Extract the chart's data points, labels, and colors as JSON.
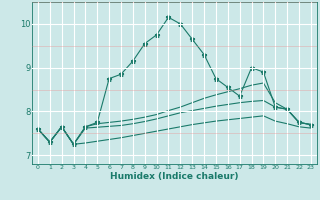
{
  "xlabel": "Humidex (Indice chaleur)",
  "bg_color": "#cce8e8",
  "grid_color": "#ffffff",
  "line_color": "#1a7a6a",
  "xlim": [
    -0.5,
    23.5
  ],
  "ylim": [
    6.8,
    10.5
  ],
  "xticks": [
    0,
    1,
    2,
    3,
    4,
    5,
    6,
    7,
    8,
    9,
    10,
    11,
    12,
    13,
    14,
    15,
    16,
    17,
    18,
    19,
    20,
    21,
    22,
    23
  ],
  "yticks": [
    7,
    8,
    9,
    10
  ],
  "line1_x": [
    0,
    1,
    2,
    3,
    4,
    5,
    6,
    7,
    8,
    9,
    10,
    11,
    12,
    13,
    14,
    15,
    16,
    17,
    18,
    19,
    20,
    21,
    22,
    23
  ],
  "line1_y": [
    7.6,
    7.3,
    7.65,
    7.25,
    7.65,
    7.75,
    8.75,
    8.85,
    9.15,
    9.55,
    9.75,
    10.15,
    10.0,
    9.65,
    9.3,
    8.75,
    8.55,
    8.35,
    9.0,
    8.9,
    8.1,
    8.05,
    7.75,
    7.7
  ],
  "line2_x": [
    0,
    1,
    2,
    3,
    4,
    5,
    6,
    7,
    8,
    9,
    10,
    11,
    12,
    13,
    14,
    15,
    16,
    17,
    18,
    19,
    20,
    21,
    22,
    23
  ],
  "line2_y": [
    7.6,
    7.3,
    7.65,
    7.25,
    7.65,
    7.72,
    7.75,
    7.78,
    7.82,
    7.87,
    7.93,
    8.02,
    8.1,
    8.2,
    8.3,
    8.38,
    8.45,
    8.52,
    8.6,
    8.65,
    8.2,
    8.05,
    7.75,
    7.7
  ],
  "line3_x": [
    0,
    1,
    2,
    3,
    4,
    5,
    6,
    7,
    8,
    9,
    10,
    11,
    12,
    13,
    14,
    15,
    16,
    17,
    18,
    19,
    20,
    21,
    22,
    23
  ],
  "line3_y": [
    7.6,
    7.3,
    7.65,
    7.25,
    7.62,
    7.64,
    7.66,
    7.68,
    7.72,
    7.77,
    7.83,
    7.9,
    7.97,
    8.02,
    8.07,
    8.12,
    8.16,
    8.2,
    8.23,
    8.25,
    8.1,
    8.05,
    7.75,
    7.7
  ],
  "line4_x": [
    0,
    1,
    2,
    3,
    4,
    5,
    6,
    7,
    8,
    9,
    10,
    11,
    12,
    13,
    14,
    15,
    16,
    17,
    18,
    19,
    20,
    21,
    22,
    23
  ],
  "line4_y": [
    7.6,
    7.3,
    7.65,
    7.25,
    7.28,
    7.32,
    7.36,
    7.4,
    7.45,
    7.5,
    7.55,
    7.6,
    7.65,
    7.7,
    7.74,
    7.78,
    7.81,
    7.84,
    7.87,
    7.9,
    7.78,
    7.72,
    7.65,
    7.62
  ]
}
